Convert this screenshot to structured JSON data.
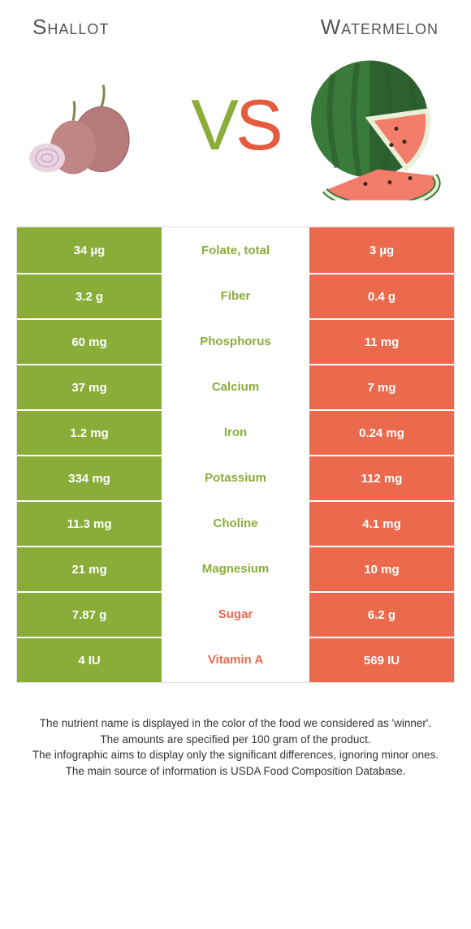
{
  "colors": {
    "left": "#8aad3a",
    "right": "#eb6a4e",
    "row_border": "#ffffff"
  },
  "header": {
    "left": "Shallot",
    "right": "Watermelon"
  },
  "vs": {
    "v": "V",
    "s": "S"
  },
  "rows": [
    {
      "left": "34 µg",
      "label": "Folate, total",
      "right": "3 µg",
      "winner": "left"
    },
    {
      "left": "3.2 g",
      "label": "Fiber",
      "right": "0.4 g",
      "winner": "left"
    },
    {
      "left": "60 mg",
      "label": "Phosphorus",
      "right": "11 mg",
      "winner": "left"
    },
    {
      "left": "37 mg",
      "label": "Calcium",
      "right": "7 mg",
      "winner": "left"
    },
    {
      "left": "1.2 mg",
      "label": "Iron",
      "right": "0.24 mg",
      "winner": "left"
    },
    {
      "left": "334 mg",
      "label": "Potassium",
      "right": "112 mg",
      "winner": "left"
    },
    {
      "left": "11.3 mg",
      "label": "Choline",
      "right": "4.1 mg",
      "winner": "left"
    },
    {
      "left": "21 mg",
      "label": "Magnesium",
      "right": "10 mg",
      "winner": "left"
    },
    {
      "left": "7.87 g",
      "label": "Sugar",
      "right": "6.2 g",
      "winner": "right"
    },
    {
      "left": "4 IU",
      "label": "Vitamin A",
      "right": "569 IU",
      "winner": "right"
    }
  ],
  "footer": {
    "l1": "The nutrient name is displayed in the color of the food we considered as 'winner'.",
    "l2": "The amounts are specified per 100 gram of the product.",
    "l3": "The infographic aims to display only the significant differences, ignoring minor ones.",
    "l4": "The main source of information is USDA Food Composition Database."
  }
}
